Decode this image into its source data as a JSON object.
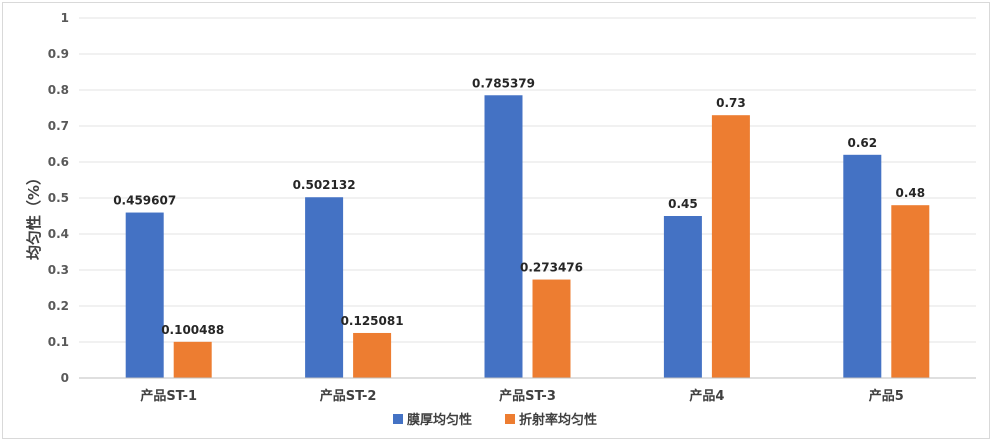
{
  "chart_data": {
    "type": "bar",
    "title": "",
    "xlabel": "",
    "ylabel": "均匀性（%）",
    "ylim": [
      0,
      1
    ],
    "yticks": [
      "0",
      "0.1",
      "0.2",
      "0.3",
      "0.4",
      "0.5",
      "0.6",
      "0.7",
      "0.8",
      "0.9",
      "1"
    ],
    "grid": true,
    "legend_position": "bottom",
    "categories": [
      "产品ST-1",
      "产品ST-2",
      "产品ST-3",
      "产品4",
      "产品5"
    ],
    "series": [
      {
        "name": "膜厚均匀性",
        "color": "#4472C4",
        "values": [
          0.459607,
          0.502132,
          0.785379,
          0.45,
          0.62
        ],
        "labels": [
          "0.459607",
          "0.502132",
          "0.785379",
          "0.45",
          "0.62"
        ]
      },
      {
        "name": "折射率均匀性",
        "color": "#ED7D31",
        "values": [
          0.100488,
          0.125081,
          0.273476,
          0.73,
          0.48
        ],
        "labels": [
          "0.100488",
          "0.125081",
          "0.273476",
          "0.73",
          "0.48"
        ]
      }
    ]
  }
}
